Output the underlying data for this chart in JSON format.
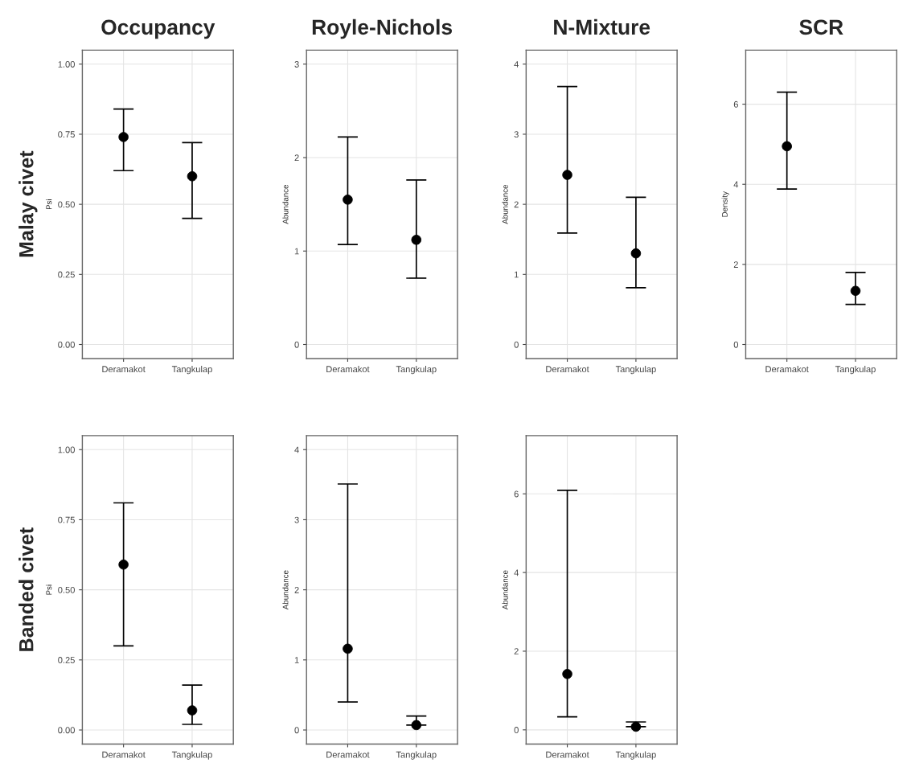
{
  "chart_data": [
    {
      "type": "scatter",
      "title": "Occupancy",
      "annotations": [
        "Malay civet"
      ],
      "ylabel": "Psi",
      "categories": [
        "Deramakot",
        "Tangkulap"
      ],
      "values": [
        0.74,
        0.6
      ],
      "errors": [
        [
          0.62,
          0.84
        ],
        [
          0.45,
          0.72
        ]
      ],
      "color": "#000000",
      "marker": "circle",
      "grid": true,
      "ylim": [
        -0.05,
        1.05
      ],
      "yticks": [
        {
          "value": 0,
          "label": "0.00"
        },
        {
          "value": 0.25,
          "label": "0.25"
        },
        {
          "value": 0.5,
          "label": "0.50"
        },
        {
          "value": 0.75,
          "label": "0.75"
        },
        {
          "value": 1,
          "label": "1.00"
        }
      ]
    },
    {
      "type": "scatter",
      "title": "Royle-Nichols",
      "ylabel": "Abundance",
      "categories": [
        "Deramakot",
        "Tangkulap"
      ],
      "values": [
        1.55,
        1.12
      ],
      "errors": [
        [
          1.07,
          2.22
        ],
        [
          0.71,
          1.76
        ]
      ],
      "color": "#000000",
      "marker": "circle",
      "grid": true,
      "ylim": [
        -0.15,
        3.15
      ],
      "yticks": [
        0,
        1,
        2,
        3
      ]
    },
    {
      "type": "scatter",
      "title": "N-Mixture",
      "ylabel": "Abundance",
      "categories": [
        "Deramakot",
        "Tangkulap"
      ],
      "values": [
        2.42,
        1.3
      ],
      "errors": [
        [
          1.59,
          3.68
        ],
        [
          0.81,
          2.1
        ]
      ],
      "color": "#000000",
      "marker": "circle",
      "grid": true,
      "ylim": [
        -0.2,
        4.2
      ],
      "yticks": [
        0,
        1,
        2,
        3,
        4
      ]
    },
    {
      "type": "scatter",
      "title": "SCR",
      "ylabel": "Density",
      "categories": [
        "Deramakot",
        "Tangkulap"
      ],
      "values": [
        4.95,
        1.34
      ],
      "errors": [
        [
          3.88,
          6.3
        ],
        [
          1.0,
          1.8
        ]
      ],
      "color": "#000000",
      "marker": "circle",
      "grid": true,
      "ylim": [
        -0.35,
        7.35
      ],
      "yticks": [
        0,
        2,
        4,
        6
      ]
    },
    {
      "type": "scatter",
      "annotations": [
        "Banded civet"
      ],
      "ylabel": "Psi",
      "categories": [
        "Deramakot",
        "Tangkulap"
      ],
      "values": [
        0.59,
        0.07
      ],
      "errors": [
        [
          0.3,
          0.81
        ],
        [
          0.02,
          0.16
        ]
      ],
      "color": "#000000",
      "marker": "circle",
      "grid": true,
      "ylim": [
        -0.05,
        1.05
      ],
      "yticks": [
        {
          "value": 0,
          "label": "0.00"
        },
        {
          "value": 0.25,
          "label": "0.25"
        },
        {
          "value": 0.5,
          "label": "0.50"
        },
        {
          "value": 0.75,
          "label": "0.75"
        },
        {
          "value": 1,
          "label": "1.00"
        }
      ]
    },
    {
      "type": "scatter",
      "ylabel": "Abundance",
      "categories": [
        "Deramakot",
        "Tangkulap"
      ],
      "values": [
        1.16,
        0.07
      ],
      "errors": [
        [
          0.4,
          3.51
        ],
        [
          0.07,
          0.2
        ]
      ],
      "color": "#000000",
      "marker": "circle",
      "grid": true,
      "ylim": [
        -0.2,
        4.2
      ],
      "yticks": [
        0,
        1,
        2,
        3,
        4
      ]
    },
    {
      "type": "scatter",
      "ylabel": "Abundance",
      "categories": [
        "Deramakot",
        "Tangkulap"
      ],
      "values": [
        1.42,
        0.08
      ],
      "errors": [
        [
          0.33,
          6.09
        ],
        [
          0.08,
          0.2
        ]
      ],
      "color": "#000000",
      "marker": "circle",
      "grid": true,
      "ylim": [
        -0.36,
        7.48
      ],
      "yticks": [
        0,
        2,
        4,
        6
      ]
    }
  ]
}
